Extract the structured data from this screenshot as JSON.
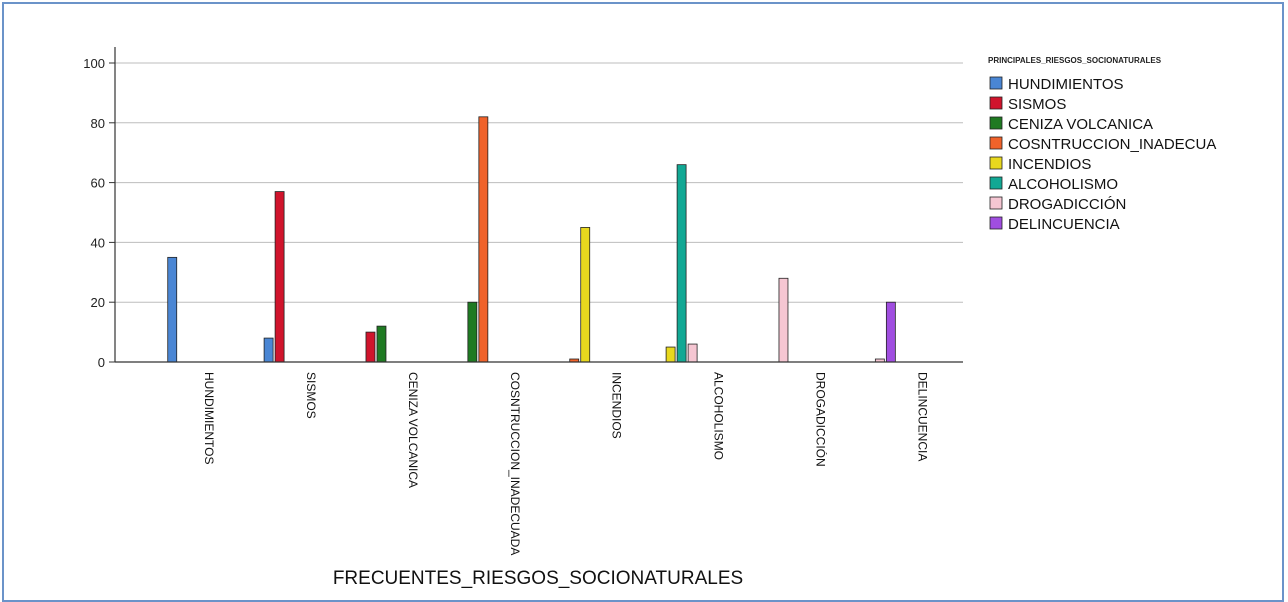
{
  "chart_data": {
    "type": "bar",
    "title": "",
    "xlabel": "FRECUENTES_RIESGOS_SOCIONATURALES",
    "ylabel": "",
    "ylim": [
      0,
      100
    ],
    "yticks": [
      0,
      20,
      40,
      60,
      80,
      100
    ],
    "grid": true,
    "legend_position": "top-right",
    "legend_title": "PRINCIPALES_RIESGOS_SOCIONATURALES",
    "categories": [
      "HUNDIMIENTOS",
      "SISMOS",
      "CENIZA VOLCANICA",
      "COSNTRUCCION_INADECUADA",
      "INCENDIOS",
      "ALCOHOLISMO",
      "DROGADICCIÓN",
      "DELINCUENCIA"
    ],
    "series": [
      {
        "name": "HUNDIMIENTOS",
        "color": "#4a86d4",
        "values": [
          35,
          8,
          0,
          0,
          0,
          0,
          0,
          0
        ]
      },
      {
        "name": "SISMOS",
        "color": "#d0142c",
        "values": [
          0,
          57,
          10,
          0,
          0,
          0,
          0,
          0
        ]
      },
      {
        "name": "CENIZA VOLCANICA",
        "color": "#1f7a22",
        "values": [
          0,
          0,
          12,
          20,
          0,
          0,
          0,
          0
        ]
      },
      {
        "name": "COSNTRUCCION_INADECUA",
        "color": "#f0622a",
        "values": [
          0,
          0,
          0,
          82,
          1,
          0,
          0,
          0
        ]
      },
      {
        "name": "INCENDIOS",
        "color": "#e8d81e",
        "values": [
          0,
          0,
          0,
          0,
          45,
          5,
          0,
          0
        ]
      },
      {
        "name": "ALCOHOLISMO",
        "color": "#12a894",
        "values": [
          0,
          0,
          0,
          0,
          0,
          66,
          0,
          0
        ]
      },
      {
        "name": "DROGADICCIÓN",
        "color": "#f5c6d2",
        "values": [
          0,
          0,
          0,
          0,
          0,
          6,
          28,
          1
        ]
      },
      {
        "name": "DELINCUENCIA",
        "color": "#a04ee0",
        "values": [
          0,
          0,
          0,
          0,
          0,
          0,
          0,
          20
        ]
      }
    ]
  }
}
